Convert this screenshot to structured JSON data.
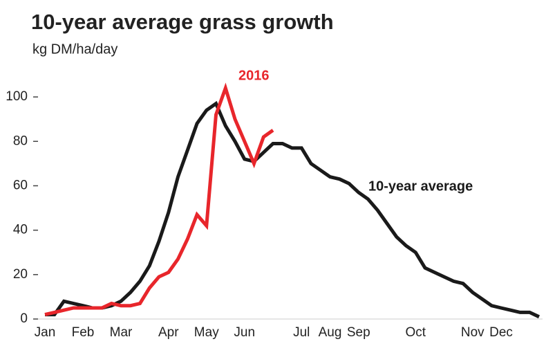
{
  "chart_data": {
    "type": "line",
    "title": "10-year average grass growth",
    "subtitle": "kg DM/ha/day",
    "categories": [
      "Jan",
      null,
      null,
      null,
      "Feb",
      null,
      null,
      null,
      "Mar",
      null,
      null,
      null,
      null,
      "Apr",
      null,
      null,
      null,
      "May",
      null,
      null,
      null,
      "Jun",
      null,
      null,
      null,
      null,
      null,
      "Jul",
      null,
      null,
      "Aug",
      null,
      null,
      "Sep",
      null,
      null,
      null,
      null,
      null,
      "Oct",
      null,
      null,
      null,
      null,
      null,
      "Nov",
      null,
      null,
      "Dec",
      null,
      null,
      null,
      null
    ],
    "series": [
      {
        "name": "10-year average",
        "color": "#1a1a1a",
        "values": [
          2,
          2,
          8,
          7,
          6,
          5,
          5,
          6,
          8,
          12,
          17,
          24,
          35,
          48,
          64,
          76,
          88,
          94,
          97,
          87,
          80,
          72,
          71,
          75,
          79,
          79,
          77,
          77,
          70,
          67,
          64,
          63,
          61,
          57,
          54,
          49,
          43,
          37,
          33,
          30,
          23,
          21,
          19,
          17,
          16,
          12,
          9,
          6,
          5,
          4,
          3,
          3,
          1
        ]
      },
      {
        "name": "2016",
        "color": "#e8262b",
        "values": [
          2,
          3,
          4,
          5,
          5,
          5,
          5,
          7,
          6,
          6,
          7,
          14,
          19,
          21,
          27,
          36,
          47,
          42,
          92,
          104,
          90,
          80,
          70,
          82,
          85,
          null,
          null,
          null,
          null,
          null,
          null,
          null,
          null,
          null,
          null,
          null,
          null,
          null,
          null,
          null,
          null,
          null,
          null,
          null,
          null,
          null,
          null,
          null,
          null,
          null,
          null,
          null,
          null
        ]
      }
    ],
    "ylim": [
      0,
      110
    ],
    "yticks": [
      0,
      20,
      40,
      60,
      80,
      100
    ]
  }
}
